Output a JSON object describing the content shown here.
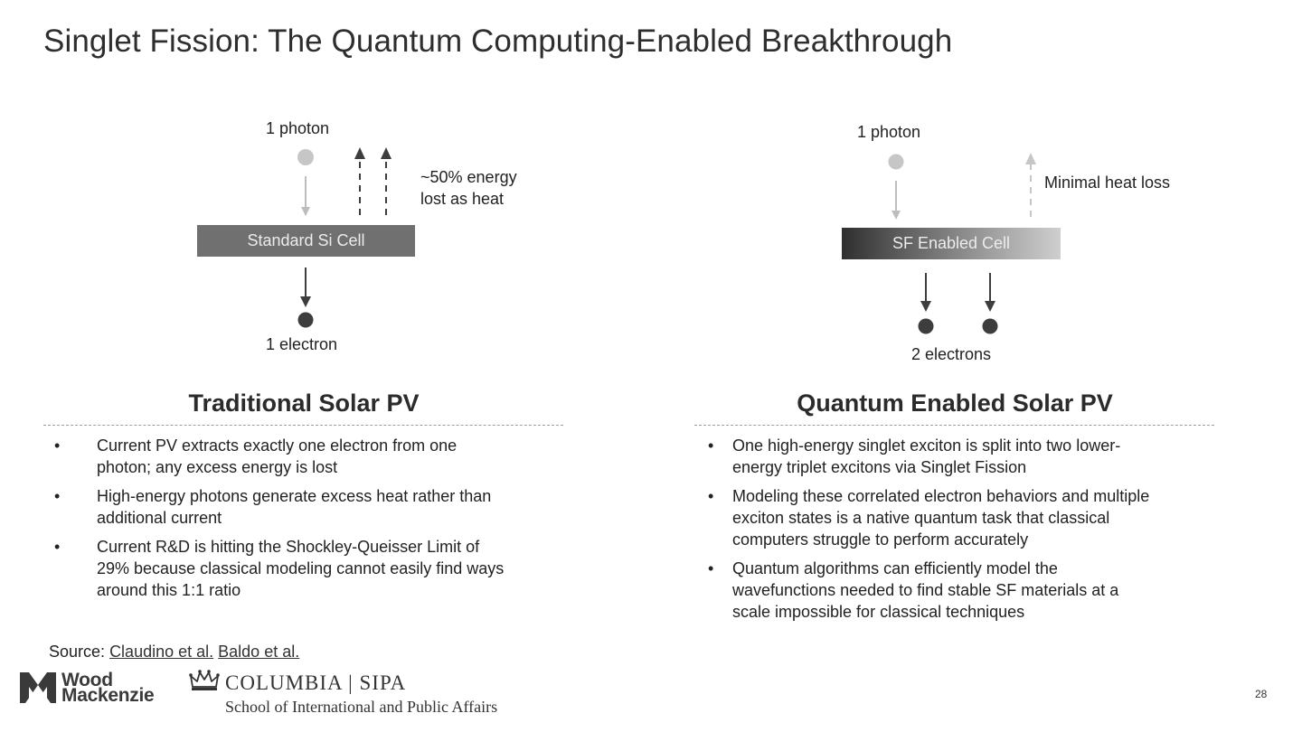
{
  "slide": {
    "title": "Singlet Fission: The Quantum Computing-Enabled Breakthrough",
    "page_number": "28"
  },
  "traditional": {
    "photon_label": "1 photon",
    "heat_label_line1": "~50% energy",
    "heat_label_line2": "lost as heat",
    "cell_label": "Standard Si Cell",
    "electron_label": "1 electron",
    "heading": "Traditional Solar PV",
    "bullets": [
      [
        "Current PV extracts exactly one electron from one",
        "photon; any excess energy is lost"
      ],
      [
        "High-energy photons generate excess heat rather than",
        "additional current"
      ],
      [
        "Current R&D is hitting the Shockley-Queisser Limit of",
        "29% because classical modeling cannot easily find ways",
        "around this 1:1 ratio"
      ]
    ]
  },
  "quantum": {
    "photon_label": "1 photon",
    "heat_label": "Minimal heat loss",
    "cell_label": "SF Enabled Cell",
    "electron_label": "2 electrons",
    "heading": "Quantum Enabled Solar PV",
    "bullets": [
      [
        "One high-energy singlet exciton is split into two lower-",
        "energy triplet excitons via Singlet Fission"
      ],
      [
        "Modeling these correlated electron behaviors and multiple",
        "exciton states is a native quantum task that classical",
        "computers struggle to perform accurately"
      ],
      [
        "Quantum algorithms can efficiently model the",
        "wavefunctions needed to find stable SF materials at a",
        "scale impossible for classical techniques"
      ]
    ]
  },
  "bullet_glyph": "•",
  "source": {
    "label": "Source:",
    "links": [
      "Claudino et al.",
      "Baldo et al."
    ]
  },
  "logos": {
    "woodmac_line1": "Wood",
    "woodmac_line2": "Mackenzie",
    "columbia_name": "COLUMBIA | SIPA",
    "columbia_sub": "School of International and Public Affairs"
  },
  "colors": {
    "photon": "#c6c6c6",
    "electron": "#3d3d3d",
    "std_cell": "#707070"
  }
}
